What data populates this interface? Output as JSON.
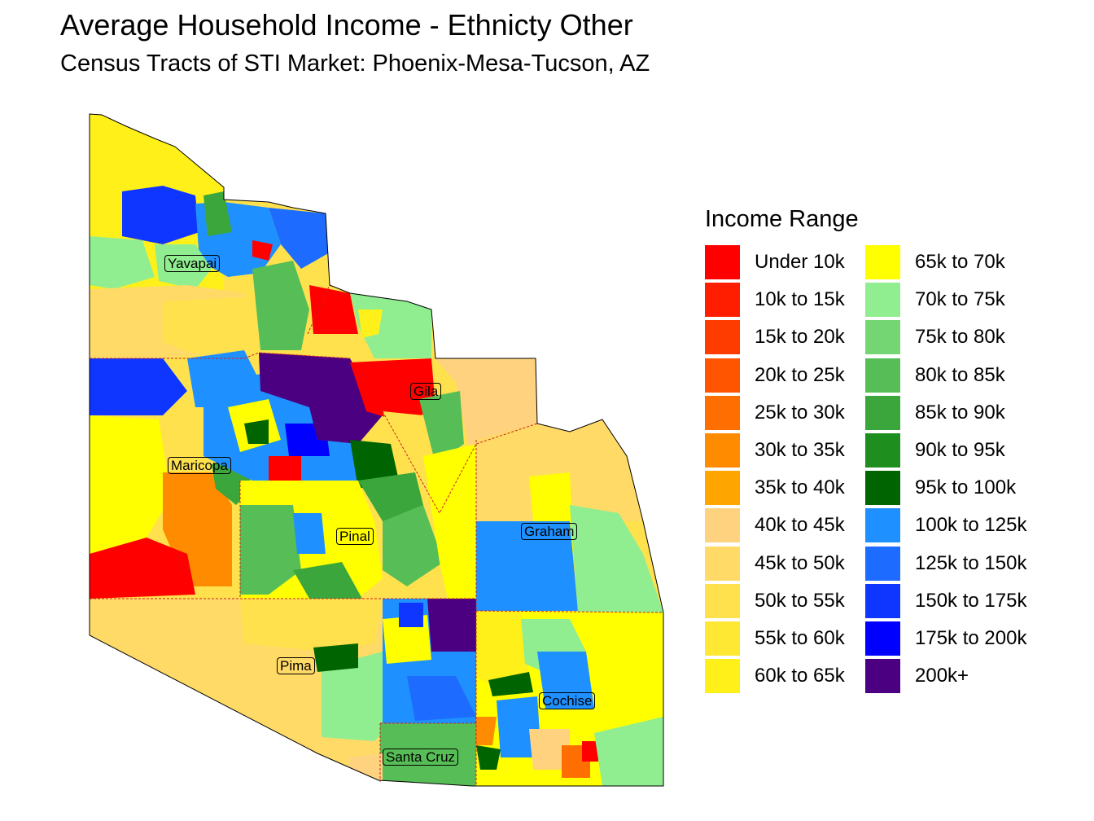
{
  "title": "Average Household Income - Ethnicty Other",
  "subtitle": "Census Tracts of STI Market: Phoenix-Mesa-Tucson, AZ",
  "legend": {
    "title": "Income Range",
    "items": [
      {
        "label": "Under 10k",
        "color": "#FF0000"
      },
      {
        "label": "10k to 15k",
        "color": "#FF1E00"
      },
      {
        "label": "15k to 20k",
        "color": "#FF3C00"
      },
      {
        "label": "20k to 25k",
        "color": "#FF5500"
      },
      {
        "label": "25k to 30k",
        "color": "#FF6E00"
      },
      {
        "label": "30k to 35k",
        "color": "#FF8C00"
      },
      {
        "label": "35k to 40k",
        "color": "#FFA500"
      },
      {
        "label": "40k to 45k",
        "color": "#FFD27F"
      },
      {
        "label": "45k to 50k",
        "color": "#FFDA66"
      },
      {
        "label": "50k to 55k",
        "color": "#FFE14D"
      },
      {
        "label": "55k to 60k",
        "color": "#FFE833"
      },
      {
        "label": "60k to 65k",
        "color": "#FFF01A"
      },
      {
        "label": "65k to 70k",
        "color": "#FFFF00"
      },
      {
        "label": "70k to 75k",
        "color": "#90EE90"
      },
      {
        "label": "75k to 80k",
        "color": "#73D673"
      },
      {
        "label": "80k to 85k",
        "color": "#57BE57"
      },
      {
        "label": "85k to 90k",
        "color": "#3BA63B"
      },
      {
        "label": "90k to 95k",
        "color": "#1E8E1E"
      },
      {
        "label": "95k to 100k",
        "color": "#006400"
      },
      {
        "label": "100k to 125k",
        "color": "#1E90FF"
      },
      {
        "label": "125k to 150k",
        "color": "#1E6CFF"
      },
      {
        "label": "150k to 175k",
        "color": "#0F36FF"
      },
      {
        "label": "175k to 200k",
        "color": "#0000FF"
      },
      {
        "label": "200k+",
        "color": "#4B0082"
      }
    ]
  },
  "counties": [
    "Yavapai",
    "Gila",
    "Maricopa",
    "Pinal",
    "Graham",
    "Pima",
    "Cochise",
    "Santa Cruz"
  ]
}
